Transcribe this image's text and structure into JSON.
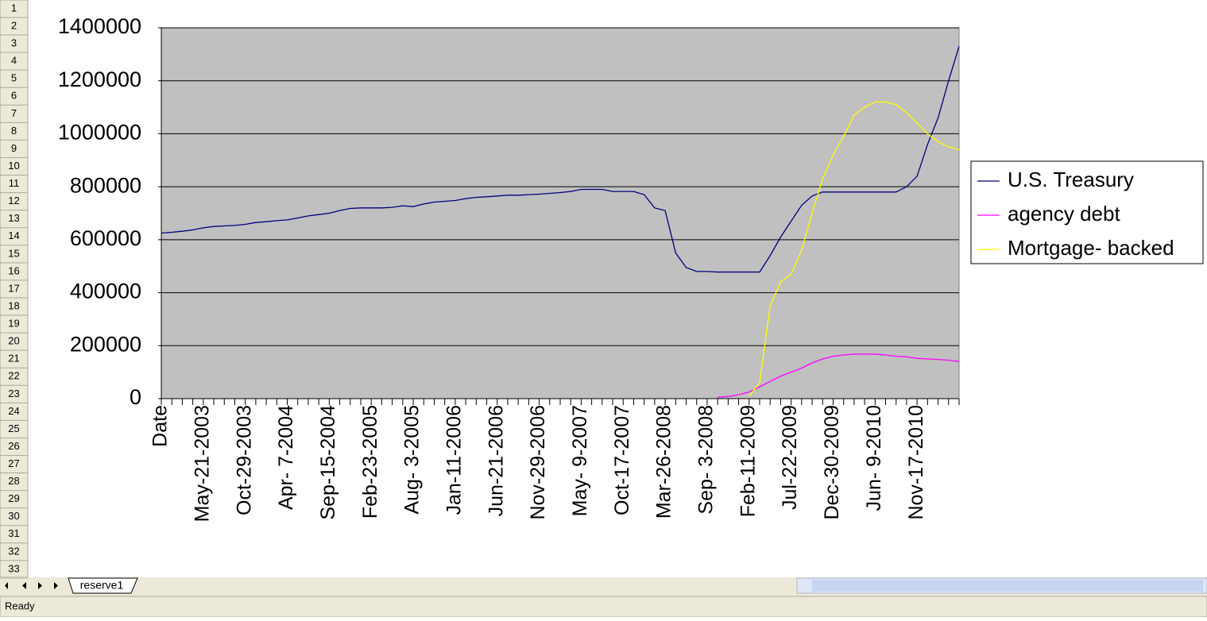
{
  "chart_data": {
    "type": "line",
    "categories": [
      "Date",
      null,
      null,
      null,
      "May-21-2003",
      null,
      null,
      null,
      "Oct-29-2003",
      null,
      null,
      null,
      "Apr- 7-2004",
      null,
      null,
      null,
      "Sep-15-2004",
      null,
      null,
      null,
      "Feb-23-2005",
      null,
      null,
      null,
      "Aug- 3-2005",
      null,
      null,
      null,
      "Jan-11-2006",
      null,
      null,
      null,
      "Jun-21-2006",
      null,
      null,
      null,
      "Nov-29-2006",
      null,
      null,
      null,
      "May- 9-2007",
      null,
      null,
      null,
      "Oct-17-2007",
      null,
      null,
      null,
      "Mar-26-2008",
      null,
      null,
      null,
      "Sep- 3-2008",
      null,
      null,
      null,
      "Feb-11-2009",
      null,
      null,
      null,
      "Jul-22-2009",
      null,
      null,
      null,
      "Dec-30-2009",
      null,
      null,
      null,
      "Jun- 9-2010",
      null,
      null,
      null,
      "Nov-17-2010",
      null,
      null,
      null,
      null
    ],
    "series": [
      {
        "name": "U.S. Treasury",
        "color": "#000080",
        "values": [
          625000,
          628000,
          632000,
          637000,
          645000,
          650000,
          652000,
          654000,
          658000,
          665000,
          668000,
          672000,
          675000,
          682000,
          690000,
          695000,
          700000,
          710000,
          718000,
          720000,
          720000,
          720000,
          722000,
          728000,
          725000,
          735000,
          742000,
          745000,
          748000,
          755000,
          760000,
          762000,
          765000,
          768000,
          768000,
          770000,
          772000,
          775000,
          778000,
          782000,
          790000,
          790000,
          790000,
          782000,
          782000,
          782000,
          770000,
          720000,
          710000,
          550000,
          495000,
          480000,
          480000,
          478000,
          478000,
          478000,
          478000,
          478000,
          540000,
          610000,
          670000,
          730000,
          765000,
          780000,
          780000,
          780000,
          780000,
          780000,
          780000,
          780000,
          780000,
          800000,
          840000,
          960000,
          1060000,
          1200000,
          1330000
        ]
      },
      {
        "name": "agency debt",
        "color": "#ff00ff",
        "values": [
          null,
          null,
          null,
          null,
          null,
          null,
          null,
          null,
          null,
          null,
          null,
          null,
          null,
          null,
          null,
          null,
          null,
          null,
          null,
          null,
          null,
          null,
          null,
          null,
          null,
          null,
          null,
          null,
          null,
          null,
          null,
          null,
          null,
          null,
          null,
          null,
          null,
          null,
          null,
          null,
          null,
          null,
          null,
          null,
          null,
          null,
          null,
          null,
          null,
          null,
          null,
          null,
          null,
          5000,
          8000,
          15000,
          25000,
          45000,
          65000,
          85000,
          100000,
          115000,
          135000,
          150000,
          160000,
          165000,
          168000,
          168000,
          168000,
          165000,
          160000,
          158000,
          152000,
          150000,
          148000,
          145000,
          140000
        ]
      },
      {
        "name": "Mortgage- backed",
        "color": "#ffff00",
        "values": [
          null,
          null,
          null,
          null,
          null,
          null,
          null,
          null,
          null,
          null,
          null,
          null,
          null,
          null,
          null,
          null,
          null,
          null,
          null,
          null,
          null,
          null,
          null,
          null,
          null,
          null,
          null,
          null,
          null,
          null,
          null,
          null,
          null,
          null,
          null,
          null,
          null,
          null,
          null,
          null,
          null,
          null,
          null,
          null,
          null,
          null,
          null,
          null,
          null,
          null,
          null,
          null,
          null,
          null,
          null,
          null,
          10000,
          60000,
          350000,
          440000,
          470000,
          560000,
          700000,
          830000,
          920000,
          990000,
          1070000,
          1100000,
          1120000,
          1120000,
          1110000,
          1080000,
          1040000,
          1000000,
          970000,
          950000,
          940000
        ]
      }
    ],
    "ylim": [
      0,
      1400000
    ],
    "yticks": [
      0,
      200000,
      400000,
      600000,
      800000,
      1000000,
      1200000,
      1400000
    ],
    "grid": true,
    "legend": "right"
  },
  "sheet": {
    "row_numbers": [
      1,
      2,
      3,
      4,
      5,
      6,
      7,
      8,
      9,
      10,
      11,
      12,
      13,
      14,
      15,
      16,
      17,
      18,
      19,
      20,
      21,
      22,
      23,
      24,
      25,
      26,
      27,
      28,
      29,
      30,
      31,
      32,
      33
    ],
    "tab": "reserve1",
    "status": "Ready"
  }
}
